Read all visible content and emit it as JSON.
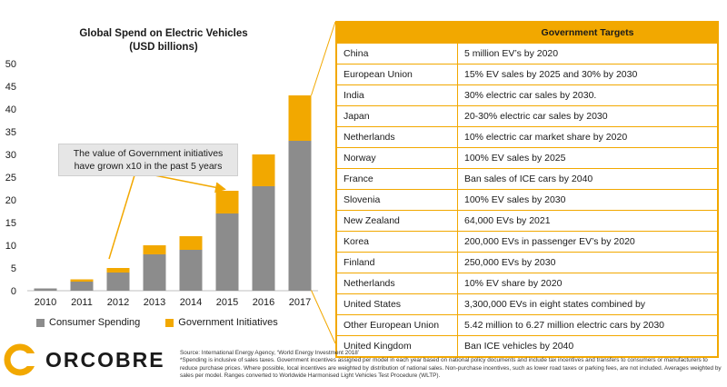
{
  "chart_data": {
    "type": "bar",
    "stacked": true,
    "title": "Global Spend on Electric Vehicles",
    "subtitle": "(USD billions)",
    "categories": [
      "2010",
      "2011",
      "2012",
      "2013",
      "2014",
      "2015",
      "2016",
      "2017"
    ],
    "series": [
      {
        "name": "Consumer Spending",
        "values": [
          0.5,
          2,
          4,
          8,
          9,
          17,
          23,
          33
        ],
        "color": "#8c8c8c"
      },
      {
        "name": "Government Initiatives",
        "values": [
          0,
          0.5,
          1,
          2,
          3,
          5,
          7,
          10
        ],
        "color": "#f2a800"
      }
    ],
    "ylim": [
      0,
      50
    ],
    "yticks": [
      "0",
      "5",
      "10",
      "15",
      "20",
      "25",
      "30",
      "35",
      "40",
      "45",
      "50"
    ],
    "grid": false,
    "legend_position": "bottom",
    "annotation": [
      "The value of Government initiatives",
      "have grown x10 in the past 5 years"
    ]
  },
  "targets_table": {
    "header": "Government Targets",
    "rows": [
      {
        "country": "China",
        "target": "5 million EV’s by 2020"
      },
      {
        "country": "European Union",
        "target": "15% EV sales by 2025 and 30% by 2030"
      },
      {
        "country": "India",
        "target": "30% electric car sales by 2030."
      },
      {
        "country": "Japan",
        "target": "20-30% electric car sales by 2030"
      },
      {
        "country": "Netherlands",
        "target": "10% electric car market share by 2020"
      },
      {
        "country": "Norway",
        "target": "100% EV sales by 2025"
      },
      {
        "country": "France",
        "target": "Ban sales of ICE cars by 2040"
      },
      {
        "country": "Slovenia",
        "target": "100% EV sales by 2030"
      },
      {
        "country": "New Zealand",
        "target": "64,000 EVs by 2021"
      },
      {
        "country": "Korea",
        "target": "200,000 EVs in passenger EV’s by 2020"
      },
      {
        "country": "Finland",
        "target": "250,000 EVs by 2030"
      },
      {
        "country": "Netherlands",
        "target": "10% EV share by 2020"
      },
      {
        "country": "United States",
        "target": "3,300,000 EVs in eight states combined by"
      },
      {
        "country": "Other European Union",
        "target": "5.42 million to 6.27 million electric cars by 2030"
      },
      {
        "country": "United Kingdom",
        "target": "Ban ICE vehicles by 2040"
      }
    ]
  },
  "brand": {
    "name": "ORCOBRE",
    "colors": {
      "primary": "#f2a800",
      "dark": "#1a1a1a"
    }
  },
  "footnote": {
    "source": "Source: International Energy Agency, ‘World Energy Investment 2018’",
    "note": "*Spending is inclusive of sales taxes. Government incentives assigned per model in each year based on national policy documents and include tax incentives and transfers to consumers or manufacturers to reduce purchase prices. Where possible, local incentives are weighted by distribution of national sales. Non-purchase incentives, such as lower road taxes or parking fees, are not included. Averages weighted by sales per model. Ranges converted to Worldwide Harmonised Light Vehicles Test Procedure (WLTP)."
  }
}
